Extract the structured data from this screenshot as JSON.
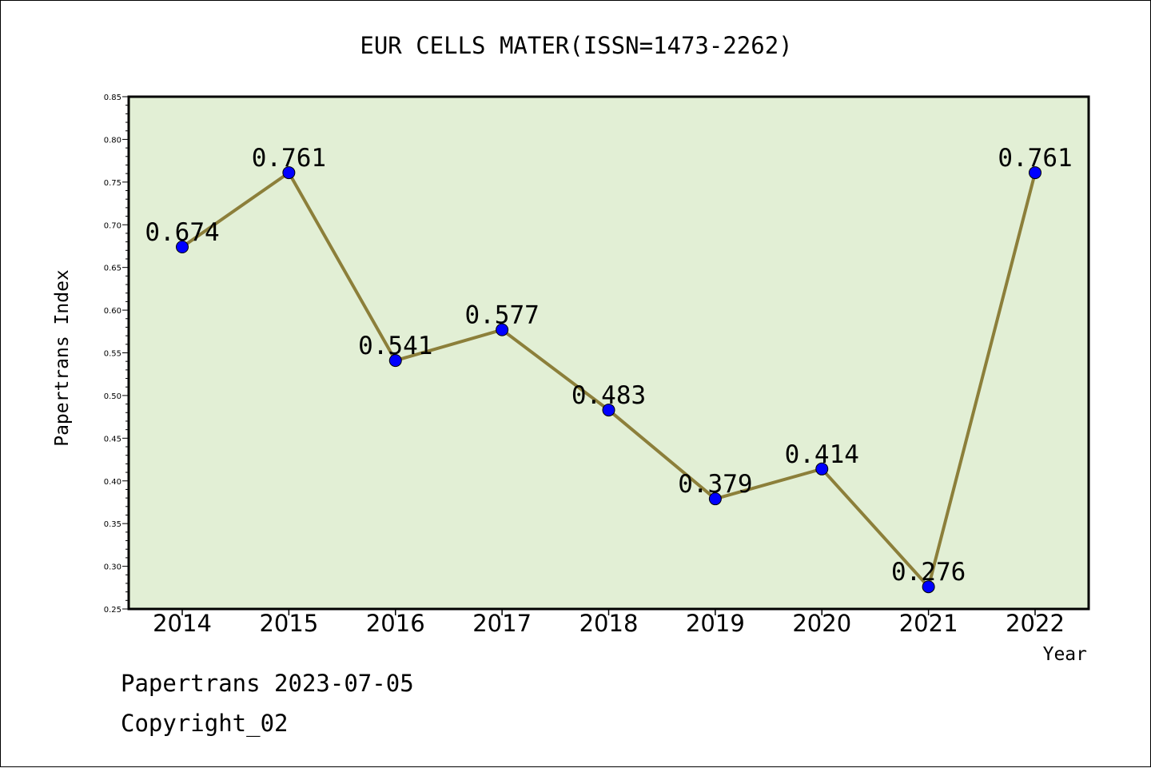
{
  "chart_data": {
    "type": "line",
    "title": "EUR CELLS MATER(ISSN=1473-2262)",
    "xlabel": "Year",
    "ylabel": "Papertrans Index",
    "categories": [
      "2014",
      "2015",
      "2016",
      "2017",
      "2018",
      "2019",
      "2020",
      "2021",
      "2022"
    ],
    "series": [
      {
        "values": [
          0.674,
          0.761,
          0.541,
          0.577,
          0.483,
          0.379,
          0.414,
          0.276,
          0.761
        ]
      }
    ],
    "data_labels": [
      "0.674",
      "0.761",
      "0.541",
      "0.577",
      "0.483",
      "0.379",
      "0.414",
      "0.276",
      "0.761"
    ],
    "ylim": [
      0.25,
      0.85
    ],
    "yticks": [
      "0.25",
      "0.30",
      "0.35",
      "0.40",
      "0.45",
      "0.50",
      "0.55",
      "0.60",
      "0.65",
      "0.70",
      "0.75",
      "0.80",
      "0.85"
    ],
    "grid": false,
    "colors": {
      "plot_bg": "#e2efd5",
      "line": "#8c7f3a",
      "marker": "#0000ff"
    }
  },
  "footer": {
    "date_line": "Papertrans 2023-07-05",
    "copyright": "Copyright_02"
  }
}
